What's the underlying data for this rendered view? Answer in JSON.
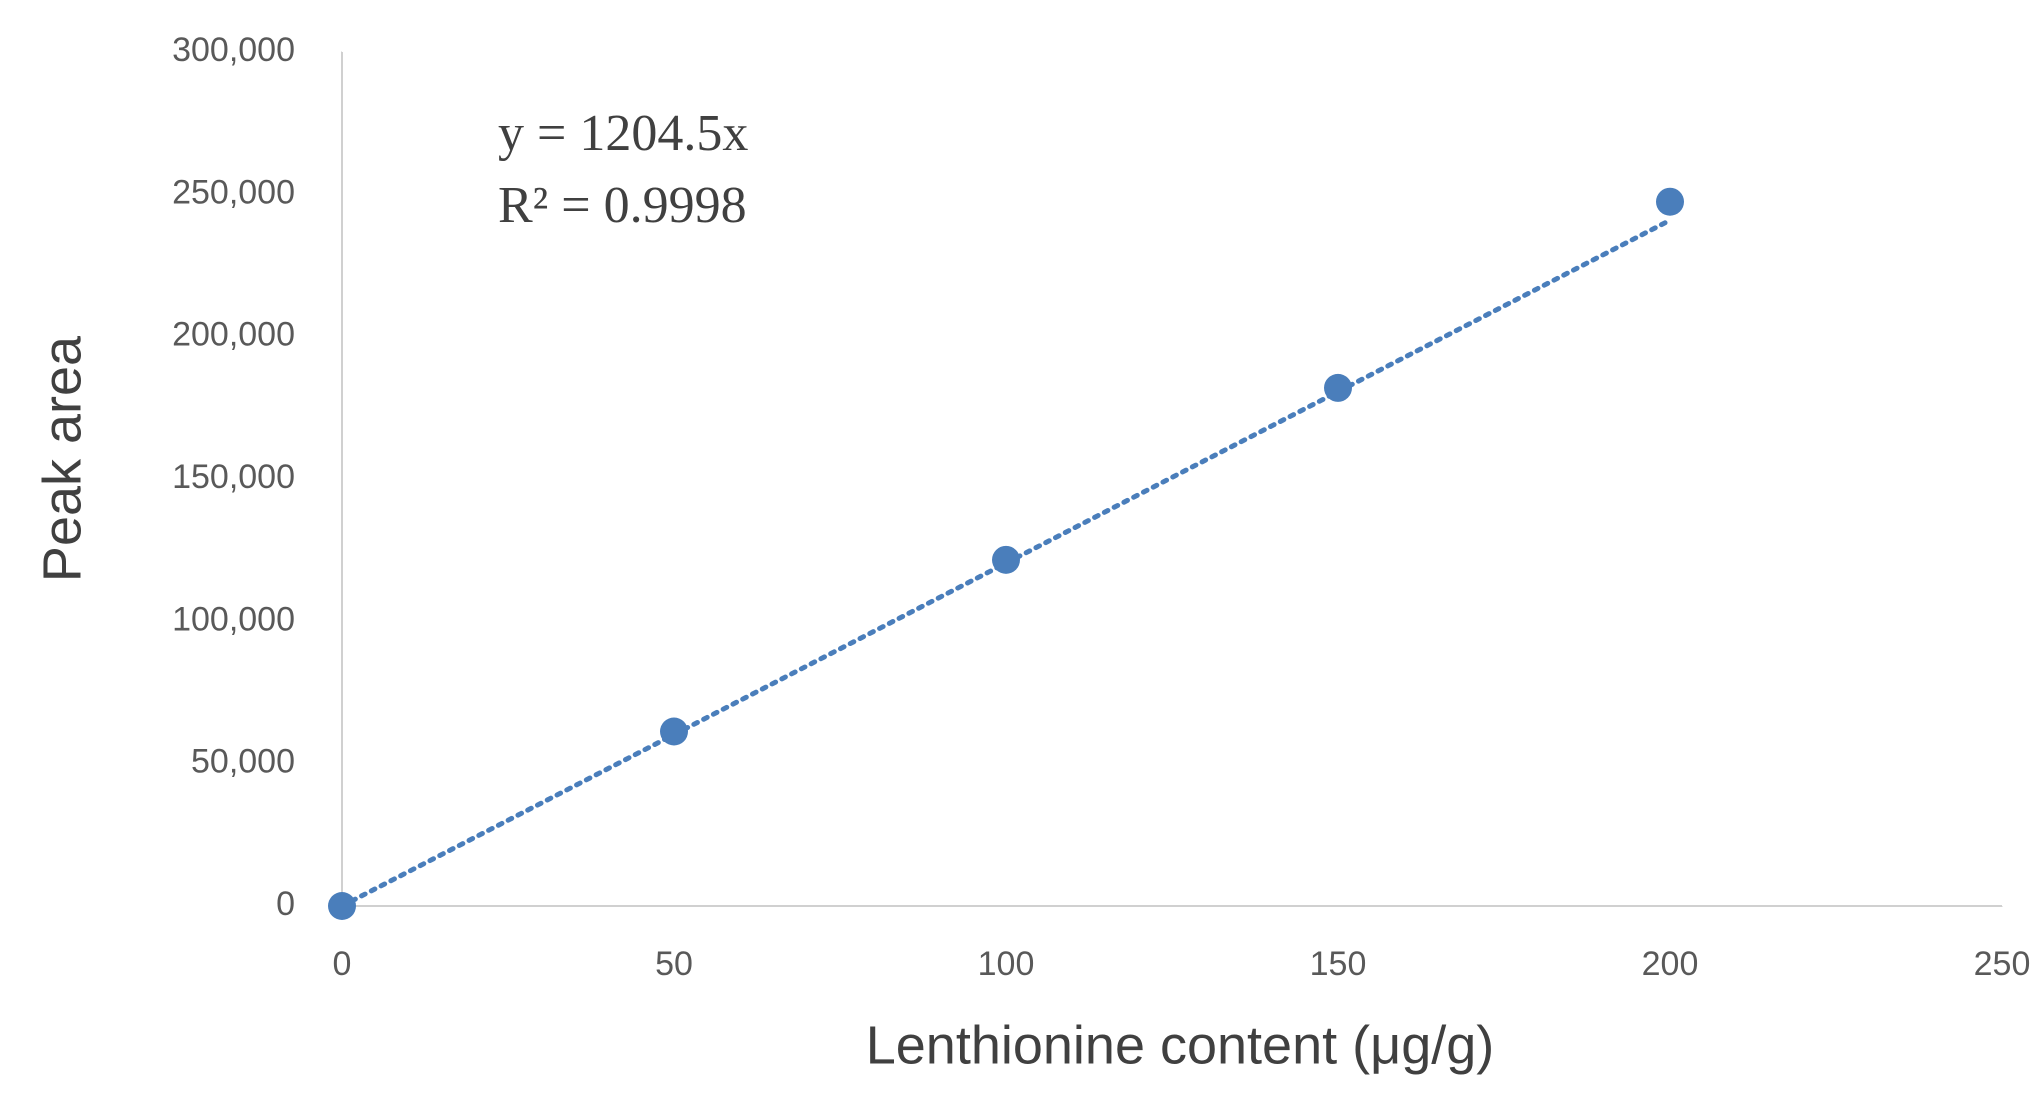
{
  "chart_data": {
    "type": "scatter",
    "x_label": "Lenthionine content (μg/g)",
    "y_label": "Peak area",
    "annotations": [
      "y = 1204.5x",
      "R² = 0.9998"
    ],
    "x": [
      0,
      50,
      100,
      150,
      200
    ],
    "series": [
      {
        "name": "Peak area",
        "color": "#4a7ebb",
        "values": [
          0,
          61300,
          121600,
          182000,
          247400
        ]
      }
    ],
    "trendline": {
      "slope": 1204.5,
      "style": "dotted"
    },
    "xlim": [
      0,
      250
    ],
    "xticks": [
      0,
      50,
      100,
      150,
      200,
      250
    ],
    "ylim": [
      0,
      300000
    ],
    "yticks": [
      0,
      {
        "value": 50000,
        "label": "50,000"
      },
      {
        "value": 100000,
        "label": "100,000"
      },
      {
        "value": 150000,
        "label": "150,000"
      },
      {
        "value": 200000,
        "label": "200,000"
      },
      {
        "value": 250000,
        "label": "250,000"
      },
      {
        "value": 300000,
        "label": "300,000"
      }
    ],
    "grid": false
  }
}
